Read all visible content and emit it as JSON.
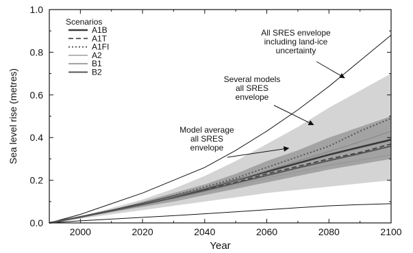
{
  "chart_data": {
    "type": "line",
    "xlabel": "Year",
    "ylabel": "Sea level rise (metres)",
    "xlim": [
      1990,
      2100
    ],
    "ylim": [
      0,
      1.0
    ],
    "xticks": [
      2000,
      2020,
      2040,
      2060,
      2080,
      2100
    ],
    "yticks": [
      0.0,
      0.2,
      0.4,
      0.6,
      0.8,
      1.0
    ],
    "ytick_labels": [
      "0.0",
      "0.2",
      "0.4",
      "0.6",
      "0.8",
      "1.0"
    ],
    "grid": false,
    "legend": {
      "title": "Scenarios",
      "placement": "top-left",
      "entries": [
        {
          "label": "A1B",
          "style": "solid-thick",
          "color": "#3a3a3a"
        },
        {
          "label": "A1T",
          "style": "dashed",
          "color": "#3a3a3a"
        },
        {
          "label": "A1FI",
          "style": "dotted",
          "color": "#555555"
        },
        {
          "label": "A2",
          "style": "solid-thin",
          "color": "#8a8a8a"
        },
        {
          "label": "B1",
          "style": "solid",
          "color": "#9a9a9a"
        },
        {
          "label": "B2",
          "style": "solid",
          "color": "#555555"
        }
      ]
    },
    "x": [
      1990,
      2000,
      2010,
      2020,
      2030,
      2040,
      2050,
      2060,
      2070,
      2080,
      2090,
      2100
    ],
    "envelopes": [
      {
        "name": "Several models all SRES envelope",
        "color": "#d4d4d4",
        "lower": [
          0.0,
          0.02,
          0.04,
          0.06,
          0.08,
          0.1,
          0.12,
          0.14,
          0.155,
          0.17,
          0.185,
          0.2
        ],
        "upper": [
          0.0,
          0.03,
          0.07,
          0.11,
          0.16,
          0.22,
          0.29,
          0.37,
          0.45,
          0.54,
          0.62,
          0.7
        ]
      },
      {
        "name": "Model average all SRES envelope",
        "color": "#a3a3a3",
        "lower": [
          0.0,
          0.025,
          0.05,
          0.075,
          0.1,
          0.13,
          0.16,
          0.19,
          0.22,
          0.25,
          0.275,
          0.3
        ],
        "upper": [
          0.0,
          0.03,
          0.06,
          0.1,
          0.14,
          0.18,
          0.23,
          0.29,
          0.34,
          0.4,
          0.45,
          0.5
        ]
      }
    ],
    "bounds": [
      {
        "name": "All SRES envelope including land-ice uncertainty (upper)",
        "values": [
          0.0,
          0.04,
          0.09,
          0.14,
          0.2,
          0.26,
          0.34,
          0.43,
          0.53,
          0.64,
          0.76,
          0.88
        ]
      },
      {
        "name": "All SRES envelope including land-ice uncertainty (lower)",
        "values": [
          0.0,
          0.01,
          0.018,
          0.026,
          0.034,
          0.043,
          0.052,
          0.062,
          0.071,
          0.08,
          0.086,
          0.09
        ]
      }
    ],
    "series": [
      {
        "name": "A1B",
        "values": [
          0.0,
          0.028,
          0.058,
          0.09,
          0.125,
          0.16,
          0.2,
          0.24,
          0.28,
          0.32,
          0.355,
          0.39
        ]
      },
      {
        "name": "A1T",
        "values": [
          0.0,
          0.028,
          0.057,
          0.088,
          0.12,
          0.155,
          0.19,
          0.23,
          0.265,
          0.3,
          0.33,
          0.37
        ]
      },
      {
        "name": "A1FI",
        "values": [
          0.0,
          0.028,
          0.058,
          0.09,
          0.128,
          0.168,
          0.21,
          0.26,
          0.31,
          0.36,
          0.43,
          0.49
        ]
      },
      {
        "name": "A2",
        "values": [
          0.0,
          0.027,
          0.056,
          0.088,
          0.124,
          0.162,
          0.2,
          0.245,
          0.29,
          0.335,
          0.38,
          0.43
        ]
      },
      {
        "name": "B1",
        "values": [
          0.0,
          0.027,
          0.055,
          0.084,
          0.114,
          0.146,
          0.178,
          0.21,
          0.24,
          0.27,
          0.295,
          0.32
        ]
      },
      {
        "name": "B2",
        "values": [
          0.0,
          0.027,
          0.056,
          0.086,
          0.118,
          0.152,
          0.187,
          0.222,
          0.258,
          0.292,
          0.325,
          0.36
        ]
      }
    ],
    "annotations": [
      {
        "lines": [
          "All SRES envelope",
          "including land-ice",
          "uncertainty"
        ],
        "target": [
          2085,
          0.68
        ]
      },
      {
        "lines": [
          "Several models",
          "all SRES",
          "envelope"
        ],
        "target": [
          2075,
          0.46
        ]
      },
      {
        "lines": [
          "Model average",
          "all SRES",
          "envelope"
        ],
        "target": [
          2067,
          0.35
        ]
      }
    ]
  }
}
